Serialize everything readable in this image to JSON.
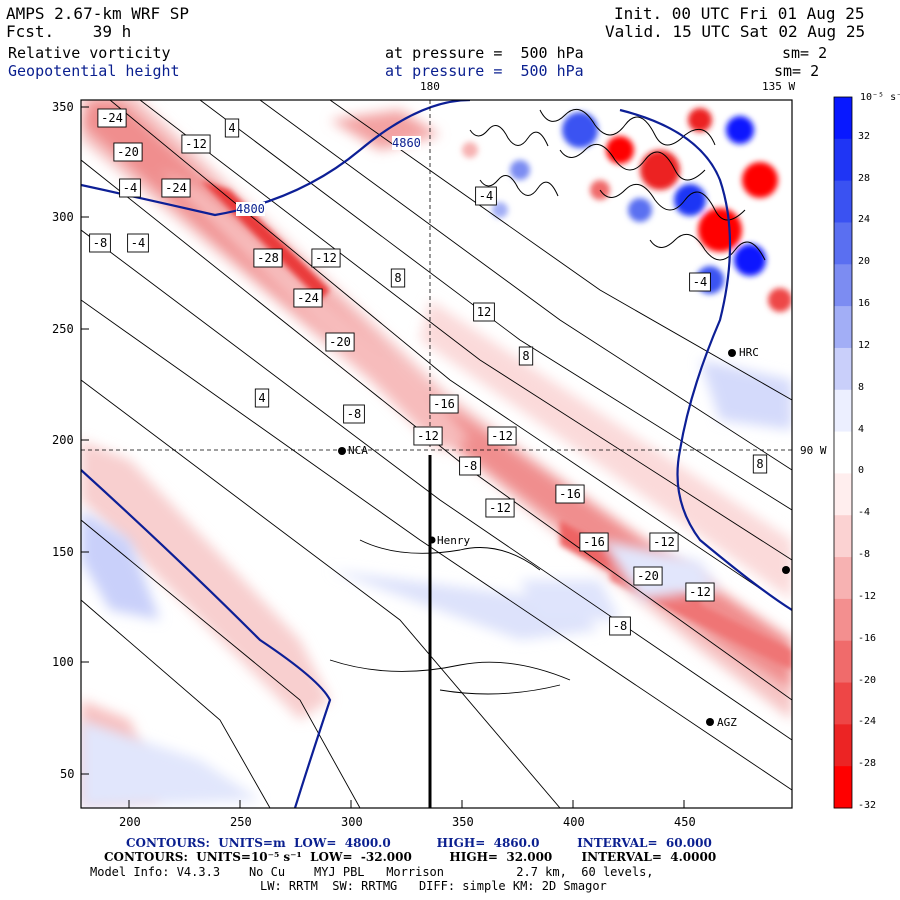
{
  "header": {
    "model_title": "AMPS 2.67-km WRF SP",
    "forecast": "Fcst.    39 h",
    "init": "Init. 00 UTC Fri 01 Aug 25",
    "valid": "Valid. 15 UTC Sat 02 Aug 25",
    "field1_name": "Relative vorticity",
    "field1_level": "at pressure =  500 hPa",
    "field1_sm": "sm= 2",
    "field2_name": "Geopotential height",
    "field2_level": "at pressure =  500 hPa",
    "field2_sm": "sm= 2"
  },
  "map": {
    "lon_label_180": "180",
    "lon_label_135": "135 W",
    "lat_label_90": "90 W",
    "y_ticks": [
      "350",
      "300",
      "250",
      "200",
      "150",
      "100",
      "50"
    ],
    "x_ticks": [
      "200",
      "250",
      "300",
      "350",
      "400",
      "450"
    ],
    "stations": [
      {
        "name": "NCA"
      },
      {
        "name": "Henry"
      },
      {
        "name": "HRC"
      },
      {
        "name": "AGZ"
      }
    ],
    "height_contour_labels": [
      "4800",
      "4860"
    ],
    "vorticity_labels": [
      "-24",
      "-20",
      "-12",
      "-4",
      "-24",
      "-8",
      "-4",
      "-28",
      "-12",
      "4",
      "-24",
      "-20",
      "-16",
      "-12",
      "-8",
      "8",
      "12",
      "-4",
      "8",
      "-16",
      "-12",
      "-12",
      "-8",
      "-16",
      "-12",
      "-20",
      "-12",
      "-8",
      "-4",
      "4",
      "8"
    ],
    "colors": {
      "positive": "#2b4fe0",
      "negative": "#e8262a",
      "height_contour": "#0d1f96"
    }
  },
  "colorbar": {
    "unit": "10⁻⁵ s⁻¹",
    "labels": [
      "32",
      "28",
      "24",
      "20",
      "16",
      "12",
      "8",
      "4",
      "0",
      "-4",
      "-8",
      "-12",
      "-16",
      "-20",
      "-24",
      "-28",
      "-32"
    ],
    "colors": [
      "#0818ff",
      "#1f35f5",
      "#3a52f2",
      "#5a6ff1",
      "#7c8cf2",
      "#a2aef6",
      "#c9cffa",
      "#ecefff",
      "#ffffff",
      "#ffeeee",
      "#fbd2d2",
      "#f7b2b2",
      "#f38f8f",
      "#f06b6b",
      "#ee4646",
      "#ec2424",
      "#ff0000"
    ]
  },
  "footer": {
    "line1": "CONTOURS:  UNITS=m  LOW=  4800.0           HIGH=  4860.0         INTERVAL=  60.000",
    "line2": "CONTOURS:  UNITS=10⁻⁵ s⁻¹  LOW=  -32.000         HIGH=  32.000       INTERVAL=  4.0000",
    "line3": "Model Info: V4.3.3    No Cu    MYJ PBL   Morrison          2.7 km,  60 levels,",
    "line4": "LW: RRTM  SW: RRTMG   DIFF: simple KM: 2D Smagor"
  }
}
